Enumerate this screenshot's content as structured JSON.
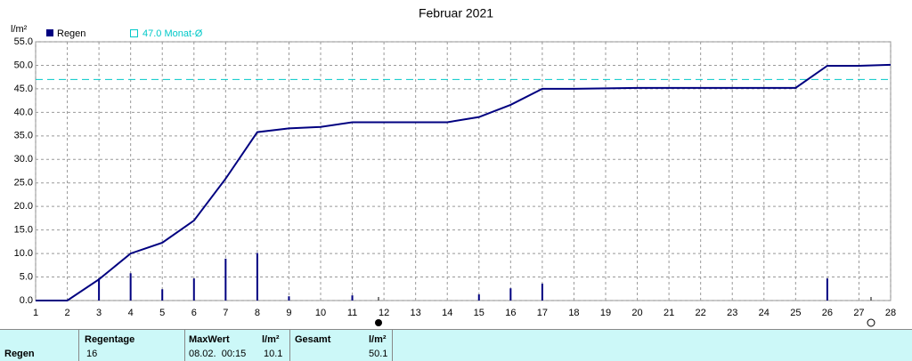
{
  "chart_data": {
    "type": "bar_line",
    "title": "Februar 2021",
    "y_label": "l/m²",
    "x": [
      1,
      2,
      3,
      4,
      5,
      6,
      7,
      8,
      9,
      10,
      11,
      12,
      13,
      14,
      15,
      16,
      17,
      18,
      19,
      20,
      21,
      22,
      23,
      24,
      25,
      26,
      27,
      28
    ],
    "xlim": [
      1,
      28
    ],
    "xticks": [
      1,
      2,
      3,
      4,
      5,
      6,
      7,
      8,
      9,
      10,
      11,
      12,
      13,
      14,
      15,
      16,
      17,
      18,
      19,
      20,
      21,
      22,
      23,
      24,
      25,
      26,
      27,
      28
    ],
    "ylim": [
      0,
      55
    ],
    "yticks": [
      {
        "value": 0,
        "label": "0.0"
      },
      {
        "value": 5,
        "label": "5.0"
      },
      {
        "value": 10,
        "label": "10.0"
      },
      {
        "value": 15,
        "label": "15.0"
      },
      {
        "value": 20,
        "label": "20.0"
      },
      {
        "value": 25,
        "label": "25.0"
      },
      {
        "value": 30,
        "label": "30.0"
      },
      {
        "value": 35,
        "label": "35.0"
      },
      {
        "value": 40,
        "label": "40.0"
      },
      {
        "value": 45,
        "label": "45.0"
      },
      {
        "value": 50,
        "label": "50.0"
      },
      {
        "value": 55,
        "label": "55.0"
      }
    ],
    "grid": true,
    "series": [
      {
        "name": "Regen",
        "type": "bar",
        "color": "#000080",
        "values": [
          0,
          0,
          4.7,
          5.8,
          2.4,
          4.7,
          8.9,
          10.1,
          0.9,
          0,
          1.1,
          0,
          0,
          0,
          1.3,
          2.6,
          3.6,
          0,
          0,
          0,
          0,
          0,
          0,
          0,
          0,
          4.7,
          0,
          0
        ]
      },
      {
        "type": "line",
        "color": "#000080",
        "values": [
          0,
          0,
          4.5,
          10.0,
          12.3,
          17.0,
          25.9,
          35.8,
          36.6,
          36.9,
          37.9,
          37.9,
          37.9,
          37.9,
          39.0,
          41.6,
          45.0,
          45.0,
          45.1,
          45.2,
          45.2,
          45.2,
          45.2,
          45.2,
          45.2,
          49.9,
          49.9,
          50.1
        ]
      }
    ],
    "reference": {
      "label": "47.0 Monat-Ø",
      "value": 47,
      "color": "#00c8c8"
    }
  },
  "summary": {
    "row_label": "Regen",
    "headers": [
      "Regentage",
      "MaxWert",
      "l/m²",
      "Gesamt",
      "l/m²"
    ],
    "values": [
      "16",
      "08.02.  00:15",
      "10.1",
      "",
      "50.1"
    ]
  }
}
